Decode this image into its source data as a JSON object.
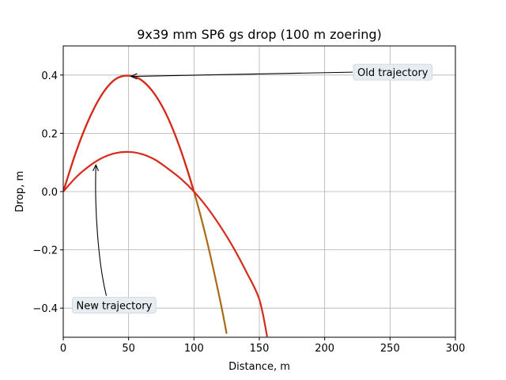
{
  "chart_data": {
    "type": "line",
    "title": "9x39 mm SP6 gs drop (100 m zoering)",
    "xlabel": "Distance, m",
    "ylabel": "Drop, m",
    "xlim": [
      0,
      300
    ],
    "ylim": [
      -0.5,
      0.5
    ],
    "xticks": [
      0,
      50,
      100,
      150,
      200,
      250,
      300
    ],
    "yticks": [
      -0.4,
      -0.2,
      0.0,
      0.2,
      0.4
    ],
    "xtick_labels": [
      "0",
      "50",
      "100",
      "150",
      "200",
      "250",
      "300"
    ],
    "ytick_labels": [
      "−0.4",
      "−0.2",
      "0.0",
      "0.2",
      "0.4"
    ],
    "grid": true,
    "series": [
      {
        "color": "#a86a14",
        "x": [
          0,
          10,
          20,
          30,
          40,
          50,
          60,
          70,
          80,
          90,
          100,
          110,
          120,
          125
        ],
        "y": [
          0.0,
          0.139,
          0.252,
          0.336,
          0.386,
          0.398,
          0.382,
          0.334,
          0.254,
          0.141,
          0.0,
          -0.171,
          -0.373,
          -0.488
        ]
      },
      {
        "color": "#d62a1c",
        "x": [
          0,
          10,
          20,
          30,
          40,
          50,
          60,
          70,
          80,
          90,
          100
        ],
        "y": [
          0.0,
          0.139,
          0.252,
          0.336,
          0.386,
          0.398,
          0.382,
          0.334,
          0.254,
          0.141,
          0.0
        ]
      },
      {
        "color": "#d62a1c",
        "x": [
          0,
          10,
          20,
          30,
          40,
          50,
          60,
          70,
          80,
          90,
          100,
          110,
          120,
          130,
          140,
          150,
          156
        ],
        "y": [
          0.0,
          0.05,
          0.088,
          0.116,
          0.132,
          0.136,
          0.129,
          0.11,
          0.079,
          0.044,
          0.0,
          -0.054,
          -0.118,
          -0.191,
          -0.275,
          -0.37,
          -0.498
        ]
      }
    ],
    "annotations": [
      {
        "text": "Old trajectory",
        "xy": [
          50,
          0.398
        ],
        "xytext": [
          225,
          0.41
        ]
      },
      {
        "text": "New trajectory",
        "xy": [
          25,
          0.1
        ],
        "xytext": [
          10,
          -0.39
        ]
      }
    ]
  }
}
